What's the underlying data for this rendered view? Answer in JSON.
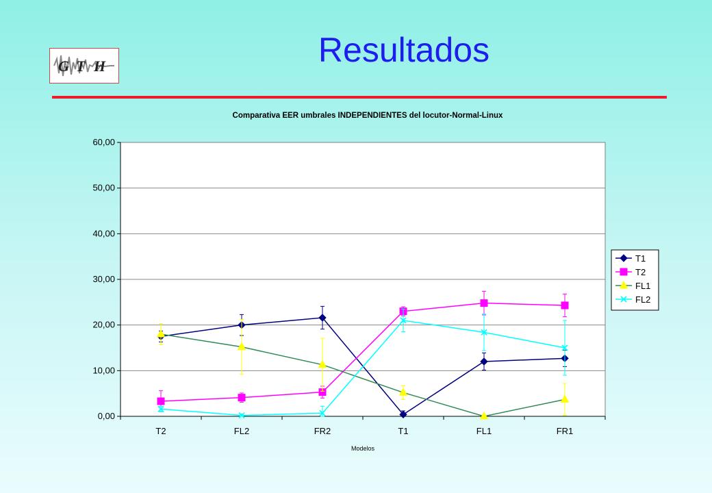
{
  "slide": {
    "title": "Resultados",
    "logo_text": "GTH",
    "colors": {
      "title": "#1d1df0",
      "rule": "#ec1c2b",
      "logo_border": "#d8474a"
    }
  },
  "chart_data": {
    "type": "line",
    "title": "Comparativa EER umbrales INDEPENDIENTES del locutor-Normal-Linux",
    "xlabel": "Modelos",
    "ylabel": "",
    "categories": [
      "T2",
      "FL2",
      "FR2",
      "T1",
      "FL1",
      "FR1"
    ],
    "ylim": [
      0,
      60
    ],
    "yticks": [
      "0,00",
      "10,00",
      "20,00",
      "30,00",
      "40,00",
      "50,00",
      "60,00"
    ],
    "grid": true,
    "legend_position": "right",
    "series": [
      {
        "name": "T1",
        "color": "#000080",
        "marker": "diamond",
        "values": [
          17.5,
          20.0,
          21.6,
          0.4,
          12.0,
          12.7
        ],
        "errors": [
          1.2,
          2.3,
          2.5,
          0.8,
          1.9,
          1.8
        ]
      },
      {
        "name": "T2",
        "color": "#ff00ff",
        "marker": "square",
        "values": [
          3.3,
          4.1,
          5.3,
          23.0,
          24.8,
          24.3
        ],
        "errors": [
          2.3,
          1.0,
          1.3,
          1.0,
          2.6,
          2.5
        ]
      },
      {
        "name": "FL1",
        "color": "#2e8b57",
        "line_color": "#2e8b57",
        "marker_color": "#ffff00",
        "marker": "triangle",
        "values": [
          18.0,
          15.2,
          11.3,
          5.2,
          0.0,
          3.7
        ],
        "errors": [
          2.3,
          6.0,
          5.8,
          1.5,
          0.3,
          3.5
        ]
      },
      {
        "name": "FL2",
        "color": "#00ffff",
        "marker": "x",
        "values": [
          1.6,
          0.2,
          0.7,
          21.0,
          18.4,
          15.0
        ],
        "errors": [
          0.6,
          0.3,
          1.5,
          2.5,
          4.0,
          6.0
        ]
      }
    ]
  }
}
